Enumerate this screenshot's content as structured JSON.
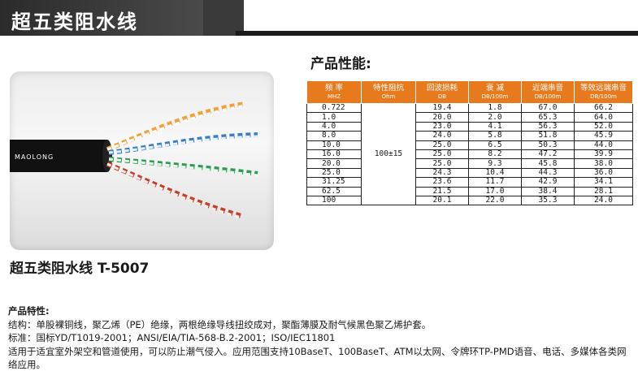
{
  "banner": {
    "title": "超五类阻水线"
  },
  "photo": {
    "cable_print": "MAOLONG"
  },
  "model_caption": "超五类阻水线 T-5007",
  "performance": {
    "heading": "产品性能:",
    "headers": [
      {
        "main": "频  率",
        "sub": "MHZ"
      },
      {
        "main": "特性阻抗",
        "sub": "Ohm"
      },
      {
        "main": "回波损耗",
        "sub": "DB"
      },
      {
        "main": "衰  减",
        "sub": "DB/100m"
      },
      {
        "main": "近端串音",
        "sub": "DB/100m"
      },
      {
        "main": "等效远端串音",
        "sub": "DB/100m"
      }
    ],
    "impedance": "100±15",
    "rows": [
      [
        "0.722",
        "19.4",
        "1.8",
        "67.0",
        "66.2"
      ],
      [
        "1.0",
        "20.0",
        "2.0",
        "65.3",
        "64.0"
      ],
      [
        "4.0",
        "23.0",
        "4.1",
        "56.3",
        "52.0"
      ],
      [
        "8.0",
        "24.0",
        "5.8",
        "51.8",
        "45.9"
      ],
      [
        "10.0",
        "25.0",
        "6.5",
        "50.3",
        "44.0"
      ],
      [
        "16.0",
        "25.0",
        "8.2",
        "47.2",
        "39.9"
      ],
      [
        "20.0",
        "25.0",
        "9.3",
        "45.8",
        "38.0"
      ],
      [
        "25.0",
        "24.3",
        "10.4",
        "44.3",
        "36.0"
      ],
      [
        "31.25",
        "23.6",
        "11.7",
        "42.9",
        "34.1"
      ],
      [
        "62.5",
        "21.5",
        "17.0",
        "38.4",
        "28.1"
      ],
      [
        "100",
        "20.1",
        "22.0",
        "35.3",
        "24.0"
      ]
    ]
  },
  "features": {
    "heading": "产品特性:",
    "lines": [
      "结构：单股裸铜线，聚乙烯（PE）绝缘，两根绝缘导线扭绞成对，聚酯薄膜及耐气候黑色聚乙烯护套。",
      "标准：国标YD/T1019-2001；ANSI/EIA/TIA-568-B.2-2001；ISO/IEC11801",
      "适用于适宜室外架空和管道使用，可以防止潮气侵入。应用范围支持10BaseT、100BaseT、ATM以太网、令牌环TP-PMD语音、电话、多媒体各类网络应用。"
    ]
  }
}
